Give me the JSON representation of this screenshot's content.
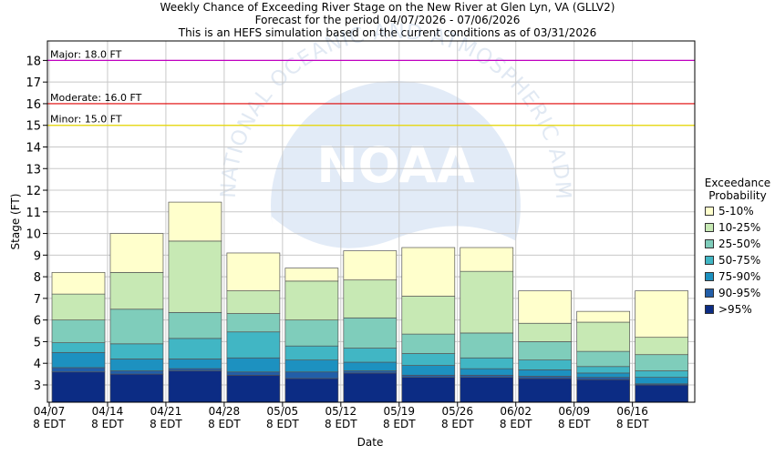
{
  "header": {
    "title_line1": "Weekly Chance of Exceeding River Stage on the New River at Glen Lyn, VA (GLLV2)",
    "title_line2": "Forecast for the period 04/07/2026 - 07/06/2026",
    "title_line3": "This is an HEFS simulation based on the current conditions as of 03/31/2026"
  },
  "watermark": {
    "logo_text": "NOAA",
    "ring_text": "NATIONAL OCEANIC AND ATMOSPHERIC ADMINISTRATION"
  },
  "legend": {
    "title_line1": "Exceedance",
    "title_line2": "Probability"
  },
  "chart_data": {
    "type": "bar",
    "stacked": true,
    "xlabel": "Date",
    "ylabel": "Stage (FT)",
    "ylim": [
      2.2,
      18.9
    ],
    "yticks": [
      3,
      4,
      5,
      6,
      7,
      8,
      9,
      10,
      11,
      12,
      13,
      14,
      15,
      16,
      17,
      18
    ],
    "grid": true,
    "legend_position": "right",
    "xticks": [
      {
        "date": "04/07",
        "time": "8 EDT"
      },
      {
        "date": "04/14",
        "time": "8 EDT"
      },
      {
        "date": "04/21",
        "time": "8 EDT"
      },
      {
        "date": "04/28",
        "time": "8 EDT"
      },
      {
        "date": "05/05",
        "time": "8 EDT"
      },
      {
        "date": "05/12",
        "time": "8 EDT"
      },
      {
        "date": "05/19",
        "time": "8 EDT"
      },
      {
        "date": "05/26",
        "time": "8 EDT"
      },
      {
        "date": "06/02",
        "time": "8 EDT"
      },
      {
        "date": "06/09",
        "time": "8 EDT"
      },
      {
        "date": "06/16",
        "time": "8 EDT"
      }
    ],
    "thresholds": [
      {
        "label": "Major: 18.0 FT",
        "value": 18.0,
        "color": "#c000c0"
      },
      {
        "label": "Moderate: 16.0 FT",
        "value": 16.0,
        "color": "#e00000"
      },
      {
        "label": "Minor: 15.0 FT",
        "value": 15.0,
        "color": "#e8d800"
      }
    ],
    "series": [
      {
        "name": ">95%",
        "color": "#0c2c84"
      },
      {
        "name": "90-95%",
        "color": "#225ea8"
      },
      {
        "name": "75-90%",
        "color": "#1d91c0"
      },
      {
        "name": "50-75%",
        "color": "#41b6c4"
      },
      {
        "name": "25-50%",
        "color": "#7fcdbb"
      },
      {
        "name": "10-25%",
        "color": "#c7e9b4"
      },
      {
        "name": "5-10%",
        "color": "#ffffcc"
      }
    ],
    "weeks": [
      {
        "levels": [
          3.6,
          3.8,
          4.5,
          4.95,
          6.0,
          7.2,
          8.2
        ]
      },
      {
        "levels": [
          3.5,
          3.65,
          4.2,
          4.9,
          6.5,
          8.2,
          10.0
        ]
      },
      {
        "levels": [
          3.65,
          3.75,
          4.2,
          5.15,
          6.35,
          9.65,
          11.45
        ]
      },
      {
        "levels": [
          3.45,
          3.6,
          4.25,
          5.45,
          6.3,
          7.35,
          9.1
        ]
      },
      {
        "levels": [
          3.3,
          3.6,
          4.15,
          4.8,
          6.0,
          7.8,
          8.4
        ]
      },
      {
        "levels": [
          3.55,
          3.65,
          4.05,
          4.7,
          6.1,
          7.85,
          9.2
        ]
      },
      {
        "levels": [
          3.35,
          3.45,
          3.9,
          4.45,
          5.35,
          7.1,
          9.35
        ]
      },
      {
        "levels": [
          3.35,
          3.45,
          3.75,
          4.25,
          5.4,
          8.25,
          9.35
        ]
      },
      {
        "levels": [
          3.3,
          3.4,
          3.7,
          4.15,
          5.0,
          5.85,
          7.35
        ]
      },
      {
        "levels": [
          3.25,
          3.35,
          3.55,
          3.85,
          4.55,
          5.9,
          6.4
        ]
      },
      {
        "levels": [
          3.0,
          3.05,
          3.35,
          3.65,
          4.4,
          5.2,
          7.35
        ]
      }
    ]
  }
}
